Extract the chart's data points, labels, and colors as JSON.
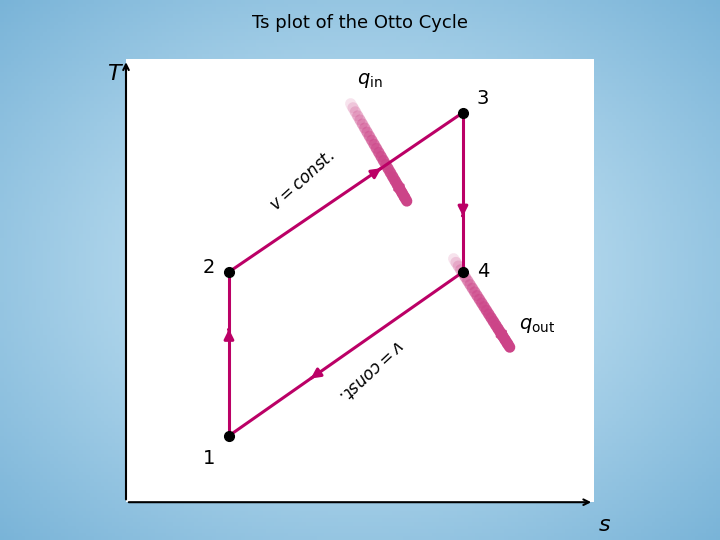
{
  "title": "Ts plot of the Otto Cycle",
  "title_fontsize": 13,
  "background_color": "#A8CCEA",
  "plot_bg": "#FFFFFF",
  "points": {
    "1": [
      0.22,
      0.15
    ],
    "2": [
      0.22,
      0.52
    ],
    "3": [
      0.72,
      0.88
    ],
    "4": [
      0.72,
      0.52
    ]
  },
  "point_color": "#000000",
  "point_size": 7,
  "line_color": "#BB0066",
  "line_width": 2.2,
  "xlabel": "s",
  "ylabel": "T",
  "label_fontsize": 16,
  "point_label_fontsize": 14,
  "vconst_fontsize": 12,
  "q_label_fontsize": 14
}
